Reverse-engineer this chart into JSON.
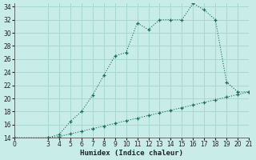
{
  "xlabel": "Humidex (Indice chaleur)",
  "bg_color": "#c8ece8",
  "line_color": "#1a6b5a",
  "grid_color": "#a8d8d0",
  "xlim": [
    0,
    21
  ],
  "ylim": [
    14,
    34.5
  ],
  "xticks": [
    0,
    3,
    4,
    5,
    6,
    7,
    8,
    9,
    10,
    11,
    12,
    13,
    14,
    15,
    16,
    17,
    18,
    19,
    20,
    21
  ],
  "yticks": [
    14,
    16,
    18,
    20,
    22,
    24,
    26,
    28,
    30,
    32,
    34
  ],
  "curve1_x": [
    0,
    3,
    4,
    5,
    6,
    7,
    8,
    9,
    10,
    11,
    12,
    13,
    14,
    15,
    16,
    17,
    18,
    19,
    20,
    21
  ],
  "curve1_y": [
    14,
    14,
    14.5,
    16.5,
    18.0,
    20.5,
    23.5,
    26.5,
    27.0,
    31.5,
    30.5,
    32.0,
    32.0,
    32.0,
    34.5,
    33.5,
    32.0,
    22.5,
    21.0,
    21.0
  ],
  "curve2_x": [
    0,
    3,
    4,
    5,
    6,
    7,
    8,
    9,
    10,
    11,
    12,
    13,
    14,
    15,
    16,
    17,
    18,
    19,
    20,
    21
  ],
  "curve2_y": [
    14,
    14,
    14.2,
    14.6,
    15.0,
    15.4,
    15.8,
    16.2,
    16.6,
    17.0,
    17.4,
    17.8,
    18.2,
    18.6,
    19.0,
    19.4,
    19.8,
    20.2,
    20.6,
    21.0
  ],
  "marker": "+"
}
